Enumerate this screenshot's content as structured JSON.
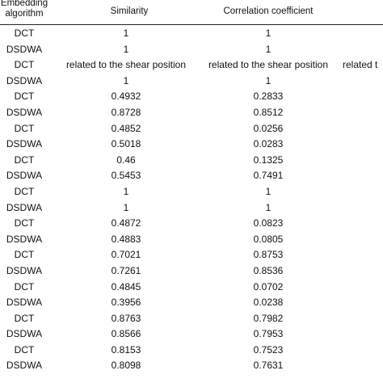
{
  "table": {
    "headers": {
      "algorithm_line1": "Embedding",
      "algorithm_line2": "algorithm",
      "similarity": "Similarity",
      "correlation": "Correlation coefficient"
    },
    "rows": [
      {
        "algorithm": "DCT",
        "similarity": "1",
        "correlation": "1",
        "extra": ""
      },
      {
        "algorithm": "DSDWA",
        "similarity": "1",
        "correlation": "1",
        "extra": ""
      },
      {
        "algorithm": "DCT",
        "similarity": "related to the shear position",
        "correlation": "related to the shear position",
        "extra": "related t"
      },
      {
        "algorithm": "DSDWA",
        "similarity": "1",
        "correlation": "1",
        "extra": ""
      },
      {
        "algorithm": "DCT",
        "similarity": "0.4932",
        "correlation": "0.2833",
        "extra": ""
      },
      {
        "algorithm": "DSDWA",
        "similarity": "0.8728",
        "correlation": "0.8512",
        "extra": ""
      },
      {
        "algorithm": "DCT",
        "similarity": "0.4852",
        "correlation": "0.0256",
        "extra": ""
      },
      {
        "algorithm": "DSDWA",
        "similarity": "0.5018",
        "correlation": "0.0283",
        "extra": ""
      },
      {
        "algorithm": "DCT",
        "similarity": "0.46",
        "correlation": "0.1325",
        "extra": ""
      },
      {
        "algorithm": "DSDWA",
        "similarity": "0.5453",
        "correlation": "0.7491",
        "extra": ""
      },
      {
        "algorithm": "DCT",
        "similarity": "1",
        "correlation": "1",
        "extra": ""
      },
      {
        "algorithm": "DSDWA",
        "similarity": "1",
        "correlation": "1",
        "extra": ""
      },
      {
        "algorithm": "DCT",
        "similarity": "0.4872",
        "correlation": "0.0823",
        "extra": ""
      },
      {
        "algorithm": "DSDWA",
        "similarity": "0.4883",
        "correlation": "0.0805",
        "extra": ""
      },
      {
        "algorithm": "DCT",
        "similarity": "0.7021",
        "correlation": "0.8753",
        "extra": ""
      },
      {
        "algorithm": "DSDWA",
        "similarity": "0.7261",
        "correlation": "0.8536",
        "extra": ""
      },
      {
        "algorithm": "DCT",
        "similarity": "0.4845",
        "correlation": "0.0702",
        "extra": ""
      },
      {
        "algorithm": "DSDWA",
        "similarity": "0.3956",
        "correlation": "0.0238",
        "extra": ""
      },
      {
        "algorithm": "DCT",
        "similarity": "0.8763",
        "correlation": "0.7982",
        "extra": ""
      },
      {
        "algorithm": "DSDWA",
        "similarity": "0.8566",
        "correlation": "0.7953",
        "extra": ""
      },
      {
        "algorithm": "DCT",
        "similarity": "0.8153",
        "correlation": "0.7523",
        "extra": ""
      },
      {
        "algorithm": "DSDWA",
        "similarity": "0.8098",
        "correlation": "0.7631",
        "extra": ""
      }
    ]
  }
}
